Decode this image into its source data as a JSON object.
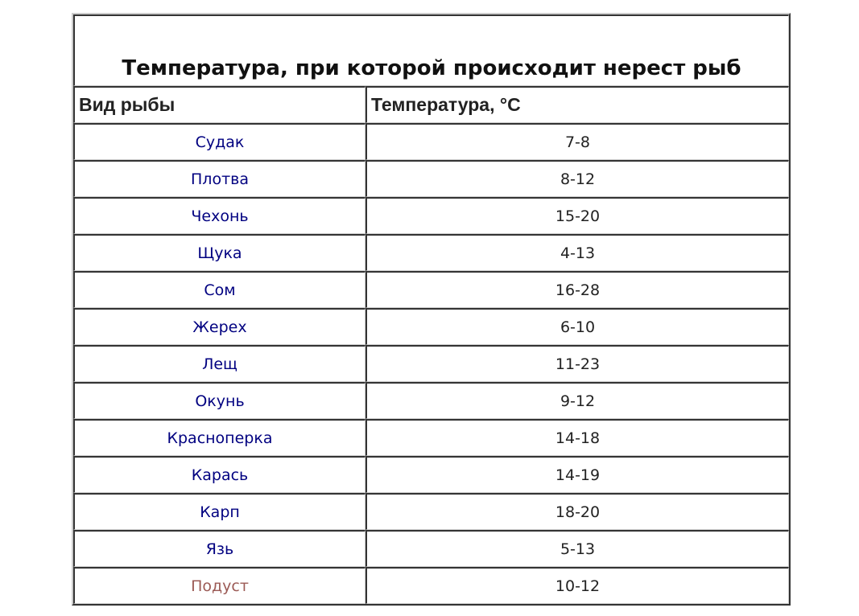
{
  "table": {
    "title": "Температура, при которой происходит нерест рыб",
    "headers": [
      "Вид рыбы",
      "Температура, °C"
    ],
    "rows": [
      {
        "fish": "Судак",
        "temp": "7-8",
        "visited": false
      },
      {
        "fish": "Плотва",
        "temp": "8-12",
        "visited": false
      },
      {
        "fish": "Чехонь",
        "temp": "15-20",
        "visited": false
      },
      {
        "fish": "Щука",
        "temp": "4-13",
        "visited": false
      },
      {
        "fish": "Сом",
        "temp": "16-28",
        "visited": false
      },
      {
        "fish": "Жерех",
        "temp": "6-10",
        "visited": false
      },
      {
        "fish": "Лещ",
        "temp": "11-23",
        "visited": false
      },
      {
        "fish": "Окунь",
        "temp": "9-12",
        "visited": false
      },
      {
        "fish": "Красноперка",
        "temp": "14-18",
        "visited": false
      },
      {
        "fish": "Карась",
        "temp": "14-19",
        "visited": false
      },
      {
        "fish": "Карп",
        "temp": "18-20",
        "visited": false
      },
      {
        "fish": "Язь",
        "temp": "5-13",
        "visited": false
      },
      {
        "fish": "Подуст",
        "temp": "10-12",
        "visited": true
      }
    ],
    "colors": {
      "link": "#000080",
      "visited_link": "#9b5a55"
    }
  }
}
